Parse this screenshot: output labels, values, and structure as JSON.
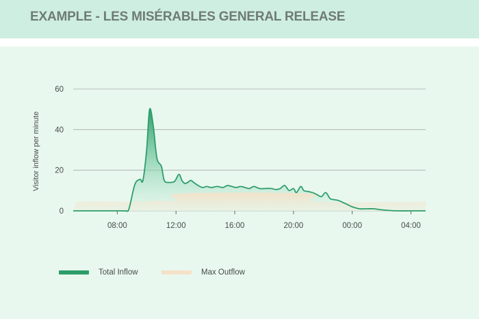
{
  "header": {
    "title": "EXAMPLE - LES MISÉRABLES GENERAL RELEASE"
  },
  "colors": {
    "inflow": "#2e9d6a",
    "outflow": "#f5e1c8",
    "grid": "#a8a8a8",
    "header_bg": "#cdeee0",
    "panel_bg": "#e8f8ef"
  },
  "chart_data": {
    "type": "area",
    "ylabel": "Visitor inflow per minute",
    "ylim": [
      0,
      60
    ],
    "yticks": [
      0,
      20,
      40,
      60
    ],
    "x_range_hours": [
      5.0,
      29.0
    ],
    "xticks": [
      {
        "hour": 8,
        "label": "08:00"
      },
      {
        "hour": 12,
        "label": "12:00"
      },
      {
        "hour": 16,
        "label": "16:00"
      },
      {
        "hour": 20,
        "label": "20:00"
      },
      {
        "hour": 24,
        "label": "00:00"
      },
      {
        "hour": 28,
        "label": "04:00"
      }
    ],
    "grid": true,
    "legend_position": "bottom-left",
    "series": [
      {
        "name": "Total Inflow",
        "x": [
          5.0,
          8.0,
          8.35,
          8.6,
          8.8,
          9.2,
          9.55,
          9.75,
          10.0,
          10.2,
          10.45,
          10.7,
          11.0,
          11.2,
          11.5,
          11.9,
          12.2,
          12.4,
          12.6,
          12.8,
          13.0,
          13.2,
          13.5,
          13.8,
          14.1,
          14.4,
          14.8,
          15.2,
          15.5,
          15.8,
          16.1,
          16.4,
          16.7,
          17.0,
          17.3,
          17.7,
          18.1,
          18.5,
          18.8,
          19.1,
          19.4,
          19.7,
          20.0,
          20.2,
          20.5,
          20.7,
          21.0,
          21.3,
          21.6,
          21.9,
          22.2,
          22.5,
          22.8,
          23.1,
          23.4,
          23.7,
          24.0,
          24.5,
          25.0,
          25.5,
          26.0,
          27.0,
          28.0,
          29.0
        ],
        "values": [
          0,
          0,
          0,
          0,
          1.0,
          13,
          15.5,
          15.0,
          30,
          50,
          42,
          26,
          22,
          15,
          14,
          14.5,
          18,
          15,
          13.5,
          14,
          15,
          14,
          12.5,
          11.5,
          12,
          11.5,
          12,
          11.5,
          12.5,
          12,
          11.5,
          12,
          11.5,
          11,
          12,
          11,
          11,
          11,
          10.5,
          11,
          12.5,
          10,
          11,
          9,
          12,
          10,
          9.5,
          9,
          8,
          7,
          9,
          6,
          5.5,
          5,
          4,
          3,
          2,
          1,
          1,
          1,
          0.5,
          0,
          0,
          0
        ]
      },
      {
        "name": "Max Outflow",
        "x": [
          5.0,
          5.2,
          5.6,
          9.8,
          10.2,
          12.0,
          12.3,
          21.0,
          21.5,
          29.0
        ],
        "values": [
          0,
          3,
          4.5,
          4.5,
          5.0,
          5.0,
          8.5,
          8.5,
          4.5,
          4.5
        ]
      }
    ]
  },
  "legend": {
    "inflow_label": "Total Inflow",
    "outflow_label": "Max Outflow"
  }
}
